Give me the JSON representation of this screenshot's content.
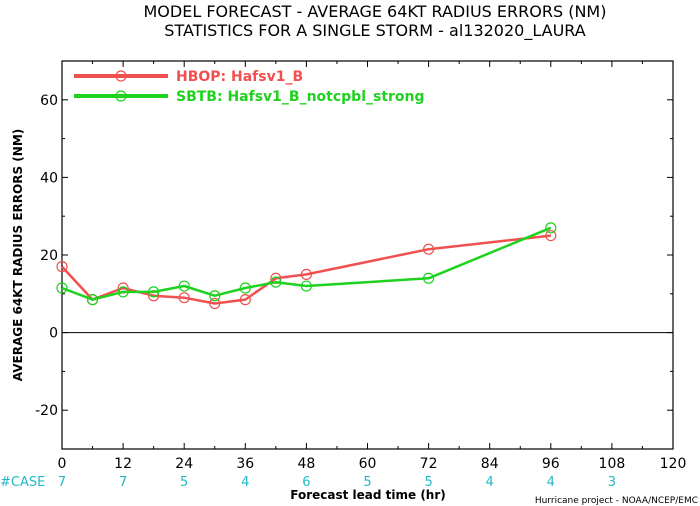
{
  "chart_data": {
    "type": "line",
    "title": "MODEL FORECAST - AVERAGE 64KT RADIUS ERRORS (NM)",
    "subtitle": "STATISTICS FOR A SINGLE STORM - al132020_LAURA",
    "xlabel": "Forecast lead time (hr)",
    "ylabel": "AVERAGE 64KT RADIUS ERRORS (NM)",
    "xlim": [
      0,
      120
    ],
    "ylim": [
      -30,
      70
    ],
    "xticks": [
      0,
      12,
      24,
      36,
      48,
      60,
      72,
      84,
      96,
      108,
      120
    ],
    "yticks": [
      -20,
      0,
      20,
      40,
      60
    ],
    "zero_line": true,
    "legend_position": "top-left",
    "series": [
      {
        "name": "HBOP: Hafsv1_B",
        "color": "#f05050",
        "x": [
          0,
          6,
          12,
          18,
          24,
          30,
          36,
          42,
          48,
          72,
          96
        ],
        "y": [
          17,
          8.5,
          11.5,
          9.5,
          9,
          7.5,
          8.5,
          14,
          15,
          21.5,
          25
        ]
      },
      {
        "name": "SBTB: Hafsv1_B_notcpbl_strong",
        "color": "#1ed21e",
        "x": [
          0,
          6,
          12,
          18,
          24,
          30,
          36,
          42,
          48,
          72,
          96
        ],
        "y": [
          11.5,
          8.5,
          10.5,
          10.5,
          12,
          9.5,
          11.5,
          13,
          12,
          14,
          27
        ]
      }
    ],
    "case_label": "#CASE",
    "cases": [
      {
        "x": 0,
        "n": "7"
      },
      {
        "x": 12,
        "n": "7"
      },
      {
        "x": 24,
        "n": "5"
      },
      {
        "x": 36,
        "n": "4"
      },
      {
        "x": 48,
        "n": "6"
      },
      {
        "x": 60,
        "n": "5"
      },
      {
        "x": 72,
        "n": "5"
      },
      {
        "x": 84,
        "n": "4"
      },
      {
        "x": 96,
        "n": "4"
      },
      {
        "x": 108,
        "n": "3"
      }
    ],
    "credit": "Hurricane project - NOAA/NCEP/EMC"
  }
}
